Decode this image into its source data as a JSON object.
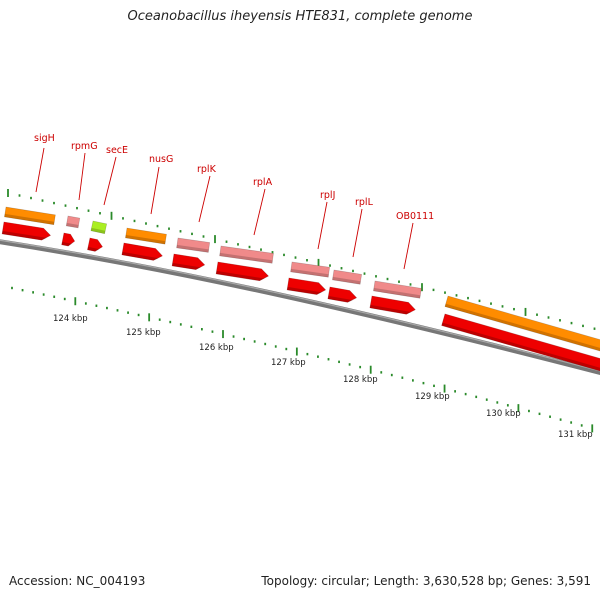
{
  "title": "Oceanobacillus iheyensis HTE831, complete genome",
  "accession": "Accession: NC_004193",
  "footer_info": "Topology: circular; Length: 3,630,528 bp; Genes: 3,591",
  "colors": {
    "backbone": "#777777",
    "tick": "#2a8a2a",
    "label": "#cc0000",
    "orange": "#ff8c00",
    "pink": "#f08a8a",
    "lime": "#aaee22",
    "red": "#ee0000"
  },
  "genes": [
    {
      "name": "sigH",
      "feature": "orange"
    },
    {
      "name": "rpmG",
      "feature": "pink"
    },
    {
      "name": "secE",
      "feature": "lime"
    },
    {
      "name": "nusG",
      "feature": "orange"
    },
    {
      "name": "rplK",
      "feature": "pink"
    },
    {
      "name": "rplA",
      "feature": "pink"
    },
    {
      "name": "rplJ",
      "feature": "pink"
    },
    {
      "name": "rplL",
      "feature": "pink"
    },
    {
      "name": "OB0111",
      "feature": "pink"
    }
  ],
  "scale_labels": [
    "124 kbp",
    "125 kbp",
    "126 kbp",
    "127 kbp",
    "128 kbp",
    "129 kbp",
    "130 kbp",
    "131 kbp"
  ]
}
